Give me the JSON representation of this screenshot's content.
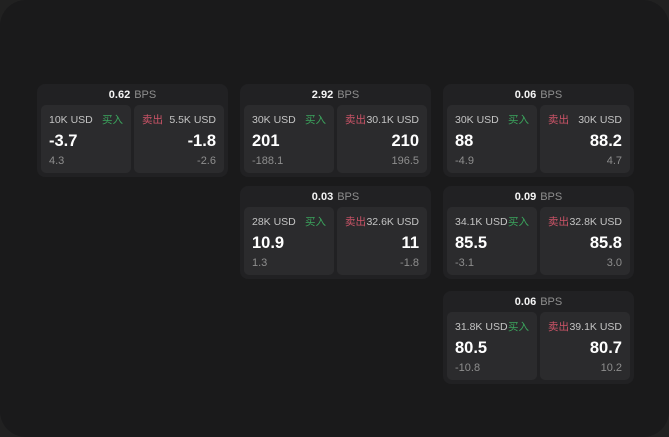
{
  "labels": {
    "bps_unit": "BPS",
    "buy": "买入",
    "sell": "卖出"
  },
  "colors": {
    "buy": "#3BA55D",
    "sell": "#CD5468",
    "panel_bg": "#1A1A1B",
    "card_bg": "#212123",
    "tile_bg": "#2B2B2D"
  },
  "cards": [
    {
      "bps": "0.62",
      "buy": {
        "size": "10K USD",
        "price": "-3.7",
        "delta": "4.3"
      },
      "sell": {
        "size": "5.5K USD",
        "price": "-1.8",
        "delta": "-2.6"
      }
    },
    {
      "bps": "2.92",
      "buy": {
        "size": "30K USD",
        "price": "201",
        "delta": "-188.1"
      },
      "sell": {
        "size": "30.1K USD",
        "price": "210",
        "delta": "196.5"
      }
    },
    {
      "bps": "0.06",
      "buy": {
        "size": "30K USD",
        "price": "88",
        "delta": "-4.9"
      },
      "sell": {
        "size": "30K USD",
        "price": "88.2",
        "delta": "4.7"
      }
    },
    {
      "bps": "0.03",
      "buy": {
        "size": "28K USD",
        "price": "10.9",
        "delta": "1.3"
      },
      "sell": {
        "size": "32.6K USD",
        "price": "11",
        "delta": "-1.8"
      }
    },
    {
      "bps": "0.09",
      "buy": {
        "size": "34.1K USD",
        "price": "85.5",
        "delta": "-3.1"
      },
      "sell": {
        "size": "32.8K USD",
        "price": "85.8",
        "delta": "3.0"
      }
    },
    {
      "bps": "0.06",
      "buy": {
        "size": "31.8K USD",
        "price": "80.5",
        "delta": "-10.8"
      },
      "sell": {
        "size": "39.1K USD",
        "price": "80.7",
        "delta": "10.2"
      }
    }
  ]
}
